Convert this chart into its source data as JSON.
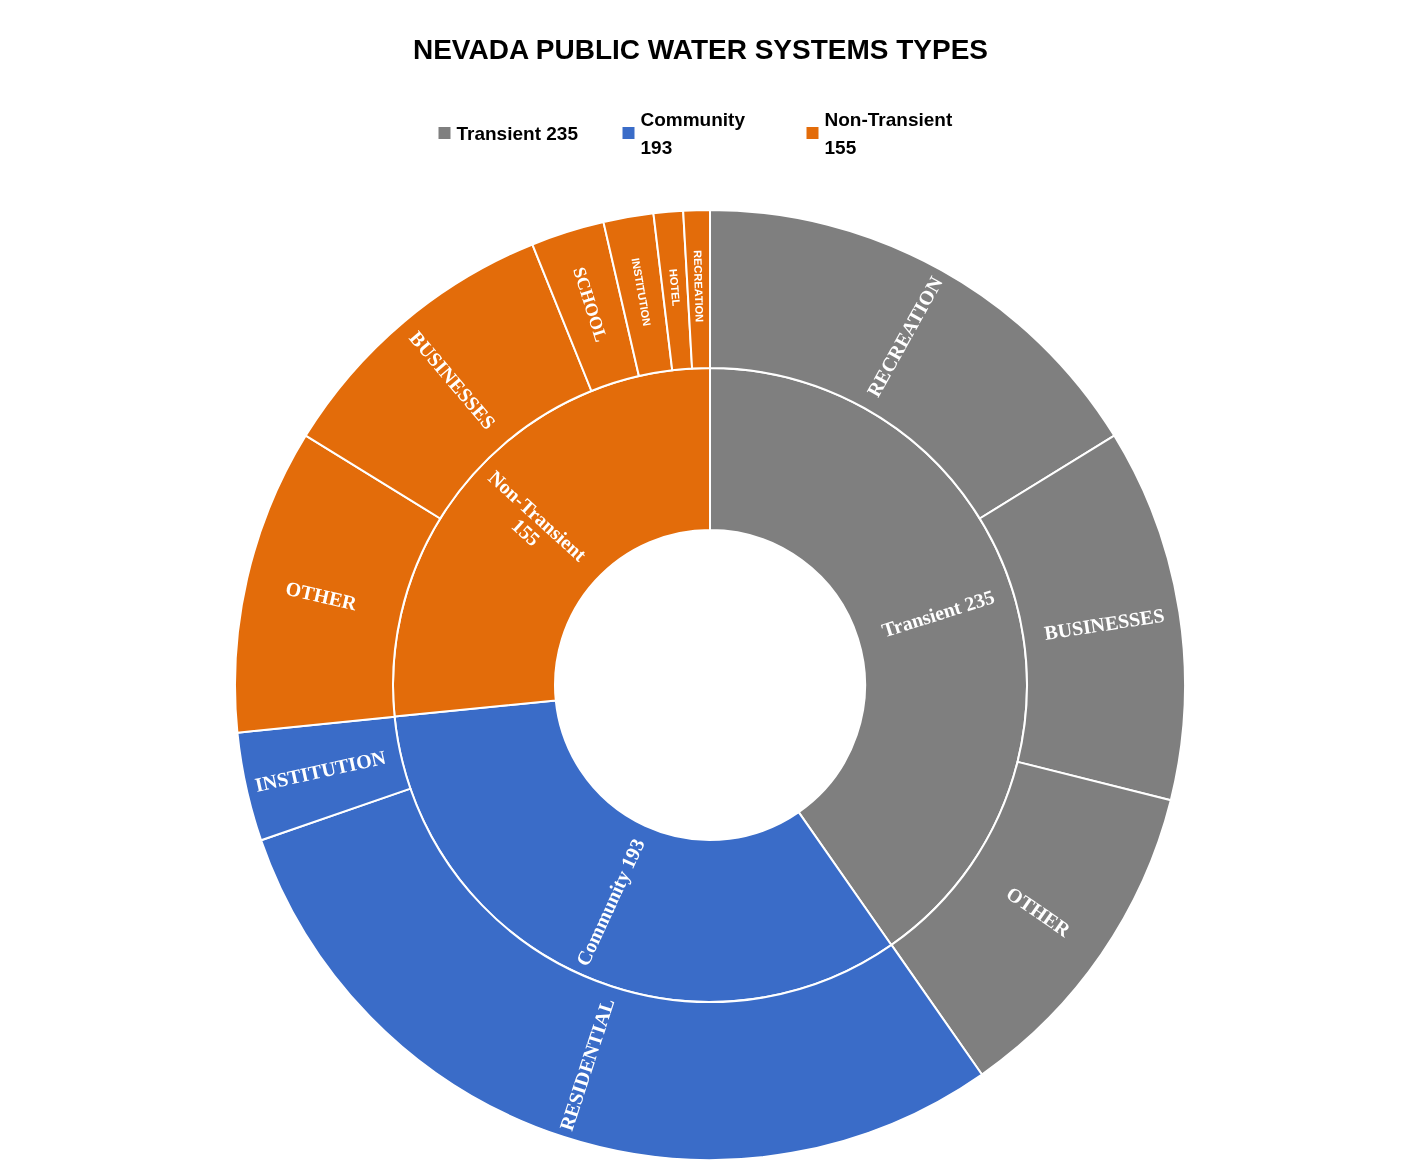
{
  "chart_data": [
    {
      "type": "donut",
      "title": "NEVADA PUBLIC WATER SYSTEMS TYPES",
      "categories": [
        "Transient 235",
        "Community 193",
        "Non-Transient 155"
      ],
      "values": [
        235,
        193,
        155
      ],
      "colors": [
        "#7f7f7f",
        "#3a6cc8",
        "#e36c0a"
      ],
      "legend": "top"
    },
    {
      "type": "donut",
      "categories": [
        "RECREATION",
        "BUSINESSES",
        "OTHER",
        "RESIDENTIAL",
        "INSTITUTION",
        "OTHER",
        "BUSINESSES",
        "SCHOOL",
        "INSTITUTION",
        "HOTEL",
        "RECREATION"
      ],
      "values": [
        16.2,
        12.7,
        11.4,
        29.4,
        3.7,
        10.4,
        10.1,
        2.5,
        1.7,
        1.0,
        0.9
      ],
      "colors": [
        "#7f7f7f",
        "#7f7f7f",
        "#7f7f7f",
        "#3a6cc8",
        "#3a6cc8",
        "#e36c0a",
        "#e36c0a",
        "#e36c0a",
        "#e36c0a",
        "#e36c0a",
        "#e36c0a"
      ]
    }
  ]
}
